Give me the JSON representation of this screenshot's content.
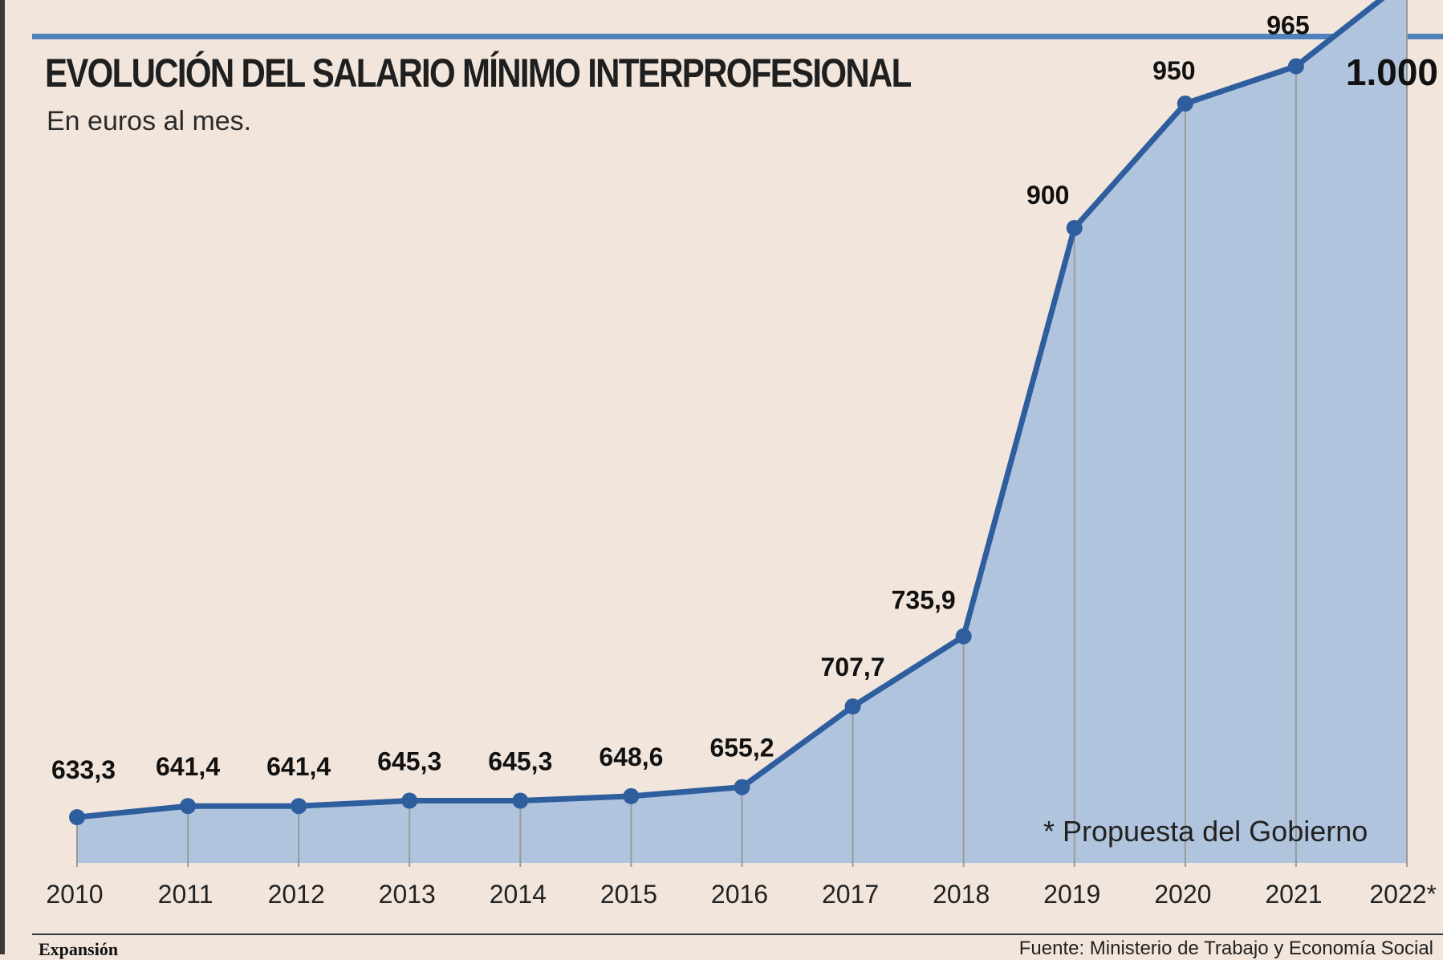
{
  "header": {
    "title": "EVOLUCIÓN DEL SALARIO MÍNIMO INTERPROFESIONAL",
    "subtitle": "En euros al mes."
  },
  "chart_data": {
    "type": "area",
    "title": "EVOLUCIÓN DEL SALARIO MÍNIMO INTERPROFESIONAL",
    "subtitle": "En euros al mes.",
    "categories": [
      "2010",
      "2011",
      "2012",
      "2013",
      "2014",
      "2015",
      "2016",
      "2017",
      "2018",
      "2019",
      "2020",
      "2021",
      "2022*"
    ],
    "values": [
      633.3,
      641.4,
      641.4,
      645.3,
      645.3,
      648.6,
      655.2,
      707.7,
      735.9,
      900,
      950,
      965,
      1000
    ],
    "data_labels": [
      "633,3",
      "641,4",
      "641,4",
      "645,3",
      "645,3",
      "648,6",
      "655,2",
      "707,7",
      "735,9",
      "900",
      "950",
      "965",
      "1.000"
    ],
    "ylim": [
      600,
      1000
    ],
    "grid": false,
    "colors": {
      "line": "#2e5e9e",
      "fill": "#b1c4de",
      "dropline": "#9a9a9a"
    },
    "note": "* Propuesta del Gobierno"
  },
  "footer": {
    "publisher": "Expansión",
    "source": "Fuente: Ministerio de Trabajo y Economía Social"
  }
}
